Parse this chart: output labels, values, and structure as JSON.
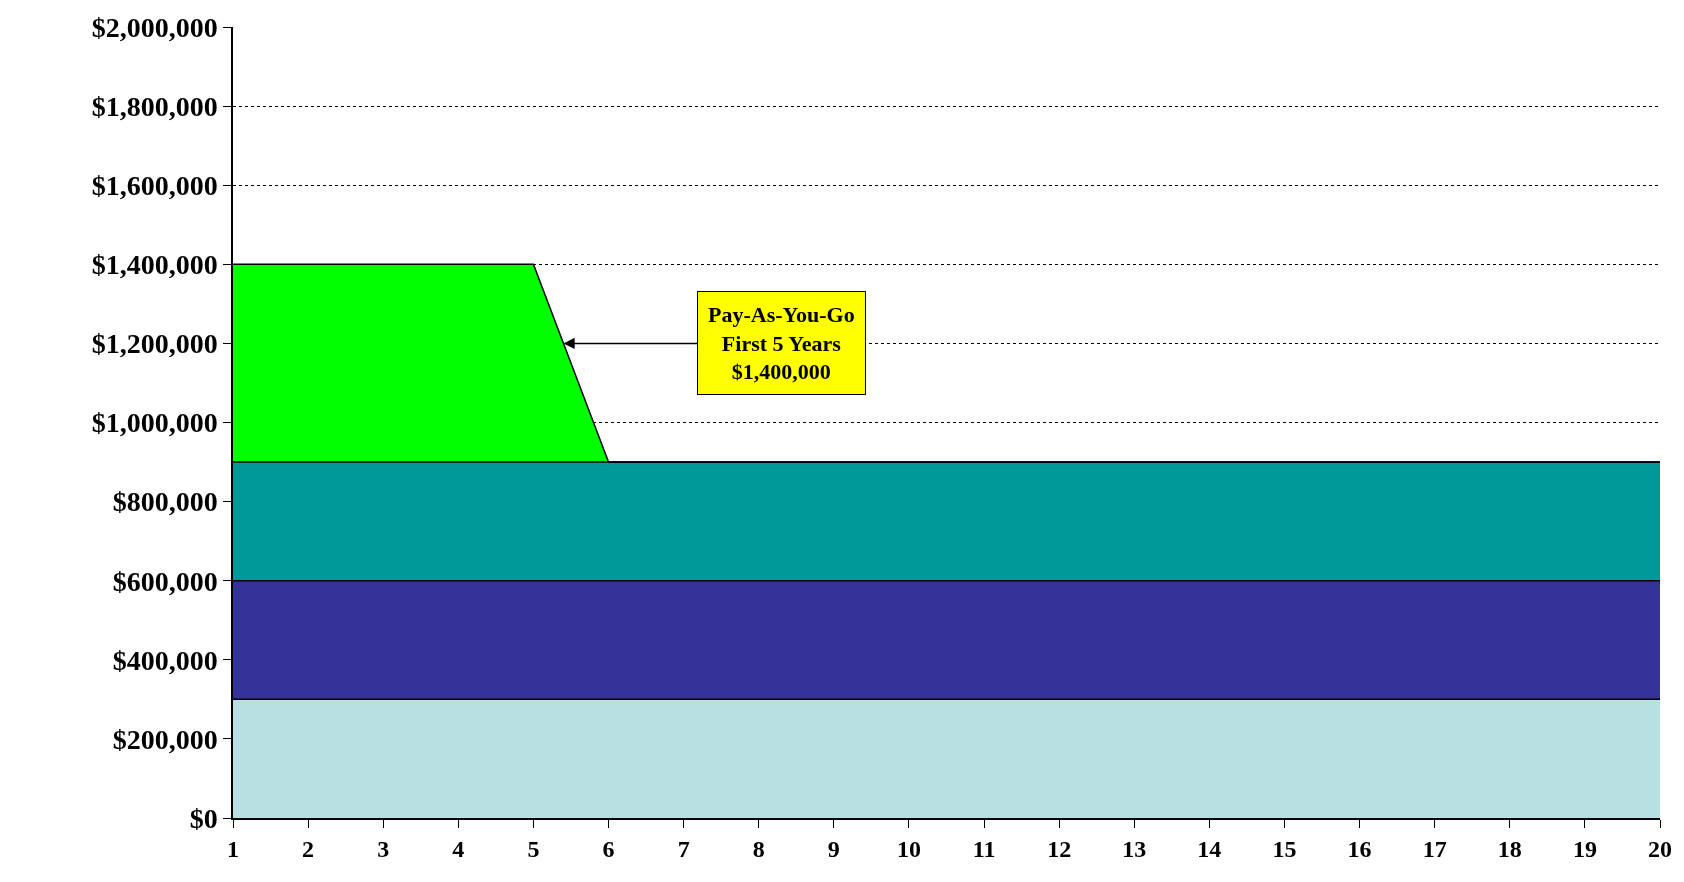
{
  "chart_data": {
    "type": "area",
    "stacked": true,
    "x": [
      1,
      2,
      3,
      4,
      5,
      6,
      7,
      8,
      9,
      10,
      11,
      12,
      13,
      14,
      15,
      16,
      17,
      18,
      19,
      20
    ],
    "series": [
      {
        "color": "#b8e0e3",
        "values": [
          300000,
          300000,
          300000,
          300000,
          300000,
          300000,
          300000,
          300000,
          300000,
          300000,
          300000,
          300000,
          300000,
          300000,
          300000,
          300000,
          300000,
          300000,
          300000,
          300000
        ]
      },
      {
        "color": "#333399",
        "values": [
          300000,
          300000,
          300000,
          300000,
          300000,
          300000,
          300000,
          300000,
          300000,
          300000,
          300000,
          300000,
          300000,
          300000,
          300000,
          300000,
          300000,
          300000,
          300000,
          300000
        ]
      },
      {
        "color": "#009999",
        "values": [
          300000,
          300000,
          300000,
          300000,
          300000,
          300000,
          300000,
          300000,
          300000,
          300000,
          300000,
          300000,
          300000,
          300000,
          300000,
          300000,
          300000,
          300000,
          300000,
          300000
        ]
      },
      {
        "color": "#00ff00",
        "values": [
          500000,
          500000,
          500000,
          500000,
          500000,
          0,
          0,
          0,
          0,
          0,
          0,
          0,
          0,
          0,
          0,
          0,
          0,
          0,
          0,
          0
        ]
      }
    ],
    "xlim": [
      1,
      20
    ],
    "xticks": [
      1,
      2,
      3,
      4,
      5,
      6,
      7,
      8,
      9,
      10,
      11,
      12,
      13,
      14,
      15,
      16,
      17,
      18,
      19,
      20
    ],
    "ylim": [
      0,
      2000000
    ],
    "yticks": [
      {
        "value": 0,
        "label": "$0"
      },
      {
        "value": 200000,
        "label": "$200,000"
      },
      {
        "value": 400000,
        "label": "$400,000"
      },
      {
        "value": 600000,
        "label": "$600,000"
      },
      {
        "value": 800000,
        "label": "$800,000"
      },
      {
        "value": 1000000,
        "label": "$1,000,000"
      },
      {
        "value": 1200000,
        "label": "$1,200,000"
      },
      {
        "value": 1400000,
        "label": "$1,400,000"
      },
      {
        "value": 1600000,
        "label": "$1,600,000"
      },
      {
        "value": 1800000,
        "label": "$1,800,000"
      },
      {
        "value": 2000000,
        "label": "$2,000,000"
      }
    ],
    "grid": "y",
    "annotations": [
      {
        "text": "Pay-As-You-Go\nFirst 5 Years\n$1,400,000",
        "x": 5.4,
        "y": 1200000
      }
    ]
  }
}
